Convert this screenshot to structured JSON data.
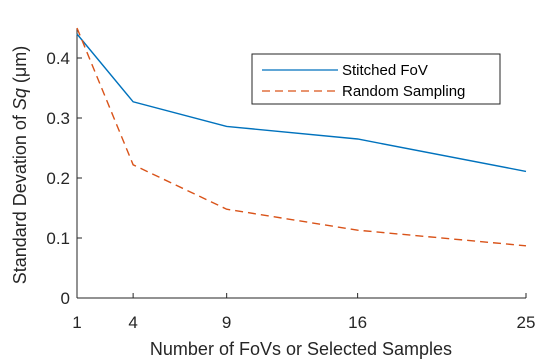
{
  "chart_data": {
    "type": "line",
    "x": [
      1,
      4,
      9,
      16,
      25
    ],
    "xlabel": "Number of FoVs or Selected Samples",
    "ylabel_prefix": "Standard Devation of ",
    "ylabel_italic": "Sq",
    "ylabel_suffix": " (μm)",
    "xlim": [
      1,
      25
    ],
    "ylim": [
      0,
      0.45
    ],
    "xticks": [
      1,
      4,
      9,
      16,
      25
    ],
    "yticks": [
      0,
      0.1,
      0.2,
      0.3,
      0.4
    ],
    "ytick_labels": [
      "0",
      "0.1",
      "0.2",
      "0.3",
      "0.4"
    ],
    "grid": false,
    "legend_position": "upper-right",
    "series": [
      {
        "name": "Stitched FoV",
        "values": [
          0.44,
          0.327,
          0.286,
          0.265,
          0.211
        ],
        "color": "#0072BD",
        "style": "solid"
      },
      {
        "name": "Random Sampling",
        "values": [
          0.45,
          0.222,
          0.148,
          0.113,
          0.087
        ],
        "color": "#D95319",
        "style": "dashed"
      }
    ]
  }
}
